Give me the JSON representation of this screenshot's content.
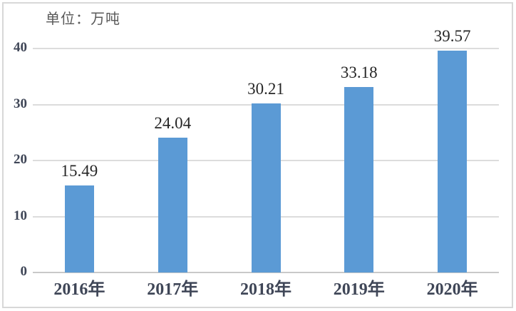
{
  "page": {
    "background": "#ffffff",
    "frame_border_color": "#d8d8d8"
  },
  "chart_data": {
    "type": "bar",
    "title": "单位：万吨",
    "categories": [
      "2016年",
      "2017年",
      "2018年",
      "2019年",
      "2020年"
    ],
    "values": [
      15.49,
      24.04,
      30.21,
      33.18,
      39.57
    ],
    "value_labels": [
      "15.49",
      "24.04",
      "30.21",
      "33.18",
      "39.57"
    ],
    "xlabel": "",
    "ylabel": "",
    "ylim": [
      0,
      40
    ],
    "yticks": [
      0,
      10,
      20,
      30,
      40
    ],
    "ytick_labels": [
      "0",
      "10",
      "20",
      "30",
      "40"
    ],
    "grid": true,
    "legend": false,
    "bar_color": "#5b9ad5",
    "gridline_color": "#dcdcdc",
    "axis_line_color": "#c9c9c9",
    "tick_label_color": "#3f4657",
    "value_label_color": "#262626",
    "title_color": "#595959"
  }
}
